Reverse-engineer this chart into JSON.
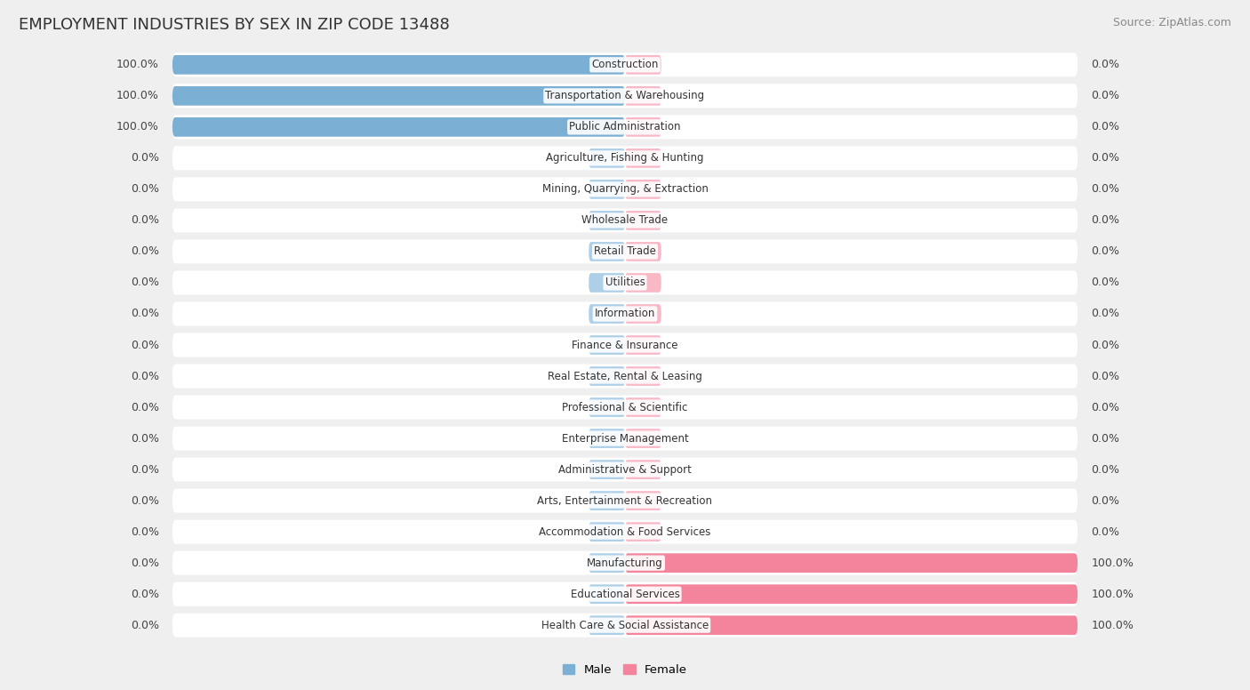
{
  "title": "EMPLOYMENT INDUSTRIES BY SEX IN ZIP CODE 13488",
  "source": "Source: ZipAtlas.com",
  "industries": [
    "Construction",
    "Transportation & Warehousing",
    "Public Administration",
    "Agriculture, Fishing & Hunting",
    "Mining, Quarrying, & Extraction",
    "Wholesale Trade",
    "Retail Trade",
    "Utilities",
    "Information",
    "Finance & Insurance",
    "Real Estate, Rental & Leasing",
    "Professional & Scientific",
    "Enterprise Management",
    "Administrative & Support",
    "Arts, Entertainment & Recreation",
    "Accommodation & Food Services",
    "Manufacturing",
    "Educational Services",
    "Health Care & Social Assistance"
  ],
  "male_pct": [
    100.0,
    100.0,
    100.0,
    0.0,
    0.0,
    0.0,
    0.0,
    0.0,
    0.0,
    0.0,
    0.0,
    0.0,
    0.0,
    0.0,
    0.0,
    0.0,
    0.0,
    0.0,
    0.0
  ],
  "female_pct": [
    0.0,
    0.0,
    0.0,
    0.0,
    0.0,
    0.0,
    0.0,
    0.0,
    0.0,
    0.0,
    0.0,
    0.0,
    0.0,
    0.0,
    0.0,
    0.0,
    100.0,
    100.0,
    100.0
  ],
  "male_color": "#7BAFD4",
  "female_color": "#F4849C",
  "male_stub_color": "#AECFE8",
  "female_stub_color": "#F9B8C6",
  "male_label": "Male",
  "female_label": "Female",
  "bg_color": "#EFEFEF",
  "row_bg_color": "#FFFFFF",
  "title_fontsize": 13,
  "source_fontsize": 9,
  "label_fontsize": 9,
  "category_fontsize": 8.5
}
